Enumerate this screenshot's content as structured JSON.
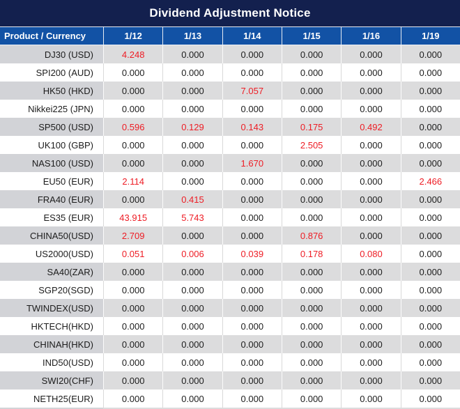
{
  "chart_data": {
    "type": "table",
    "title": "Dividend Adjustment Notice",
    "columns": [
      "Product / Currency",
      "1/12",
      "1/13",
      "1/14",
      "1/15",
      "1/16",
      "1/19"
    ],
    "rows": [
      {
        "product": "DJ30 (USD)",
        "values": [
          "4.248",
          "0.000",
          "0.000",
          "0.000",
          "0.000",
          "0.000"
        ],
        "red": [
          true,
          false,
          false,
          false,
          false,
          false
        ]
      },
      {
        "product": "SPI200 (AUD)",
        "values": [
          "0.000",
          "0.000",
          "0.000",
          "0.000",
          "0.000",
          "0.000"
        ],
        "red": [
          false,
          false,
          false,
          false,
          false,
          false
        ]
      },
      {
        "product": "HK50 (HKD)",
        "values": [
          "0.000",
          "0.000",
          "7.057",
          "0.000",
          "0.000",
          "0.000"
        ],
        "red": [
          false,
          false,
          true,
          false,
          false,
          false
        ]
      },
      {
        "product": "Nikkei225 (JPN)",
        "values": [
          "0.000",
          "0.000",
          "0.000",
          "0.000",
          "0.000",
          "0.000"
        ],
        "red": [
          false,
          false,
          false,
          false,
          false,
          false
        ]
      },
      {
        "product": "SP500 (USD)",
        "values": [
          "0.596",
          "0.129",
          "0.143",
          "0.175",
          "0.492",
          "0.000"
        ],
        "red": [
          true,
          true,
          true,
          true,
          true,
          false
        ]
      },
      {
        "product": "UK100 (GBP)",
        "values": [
          "0.000",
          "0.000",
          "0.000",
          "2.505",
          "0.000",
          "0.000"
        ],
        "red": [
          false,
          false,
          false,
          true,
          false,
          false
        ]
      },
      {
        "product": "NAS100 (USD)",
        "values": [
          "0.000",
          "0.000",
          "1.670",
          "0.000",
          "0.000",
          "0.000"
        ],
        "red": [
          false,
          false,
          true,
          false,
          false,
          false
        ]
      },
      {
        "product": "EU50 (EUR)",
        "values": [
          "2.114",
          "0.000",
          "0.000",
          "0.000",
          "0.000",
          "2.466"
        ],
        "red": [
          true,
          false,
          false,
          false,
          false,
          true
        ]
      },
      {
        "product": "FRA40 (EUR)",
        "values": [
          "0.000",
          "0.415",
          "0.000",
          "0.000",
          "0.000",
          "0.000"
        ],
        "red": [
          false,
          true,
          false,
          false,
          false,
          false
        ]
      },
      {
        "product": "ES35 (EUR)",
        "values": [
          "43.915",
          "5.743",
          "0.000",
          "0.000",
          "0.000",
          "0.000"
        ],
        "red": [
          true,
          true,
          false,
          false,
          false,
          false
        ]
      },
      {
        "product": "CHINA50(USD)",
        "values": [
          "2.709",
          "0.000",
          "0.000",
          "0.876",
          "0.000",
          "0.000"
        ],
        "red": [
          true,
          false,
          false,
          true,
          false,
          false
        ]
      },
      {
        "product": "US2000(USD)",
        "values": [
          "0.051",
          "0.006",
          "0.039",
          "0.178",
          "0.080",
          "0.000"
        ],
        "red": [
          true,
          true,
          true,
          true,
          true,
          false
        ]
      },
      {
        "product": "SA40(ZAR)",
        "values": [
          "0.000",
          "0.000",
          "0.000",
          "0.000",
          "0.000",
          "0.000"
        ],
        "red": [
          false,
          false,
          false,
          false,
          false,
          false
        ]
      },
      {
        "product": "SGP20(SGD)",
        "values": [
          "0.000",
          "0.000",
          "0.000",
          "0.000",
          "0.000",
          "0.000"
        ],
        "red": [
          false,
          false,
          false,
          false,
          false,
          false
        ]
      },
      {
        "product": "TWINDEX(USD)",
        "values": [
          "0.000",
          "0.000",
          "0.000",
          "0.000",
          "0.000",
          "0.000"
        ],
        "red": [
          false,
          false,
          false,
          false,
          false,
          false
        ]
      },
      {
        "product": "HKTECH(HKD)",
        "values": [
          "0.000",
          "0.000",
          "0.000",
          "0.000",
          "0.000",
          "0.000"
        ],
        "red": [
          false,
          false,
          false,
          false,
          false,
          false
        ]
      },
      {
        "product": "CHINAH(HKD)",
        "values": [
          "0.000",
          "0.000",
          "0.000",
          "0.000",
          "0.000",
          "0.000"
        ],
        "red": [
          false,
          false,
          false,
          false,
          false,
          false
        ]
      },
      {
        "product": "IND50(USD)",
        "values": [
          "0.000",
          "0.000",
          "0.000",
          "0.000",
          "0.000",
          "0.000"
        ],
        "red": [
          false,
          false,
          false,
          false,
          false,
          false
        ]
      },
      {
        "product": "SWI20(CHF)",
        "values": [
          "0.000",
          "0.000",
          "0.000",
          "0.000",
          "0.000",
          "0.000"
        ],
        "red": [
          false,
          false,
          false,
          false,
          false,
          false
        ]
      },
      {
        "product": "NETH25(EUR)",
        "values": [
          "0.000",
          "0.000",
          "0.000",
          "0.000",
          "0.000",
          "0.000"
        ],
        "red": [
          false,
          false,
          false,
          false,
          false,
          false
        ]
      }
    ],
    "colors": {
      "title_bar_navy": "#13204e",
      "header_blue": "#1252a5",
      "stripe_gray_product": "#d2d3d7",
      "stripe_gray_data": "#dcdcdd",
      "value_red": "#ee1c24",
      "value_black": "#1c1c1c"
    },
    "layout": {
      "grid": "striped-rows",
      "value_alignment": "center",
      "product_alignment": "right"
    }
  }
}
